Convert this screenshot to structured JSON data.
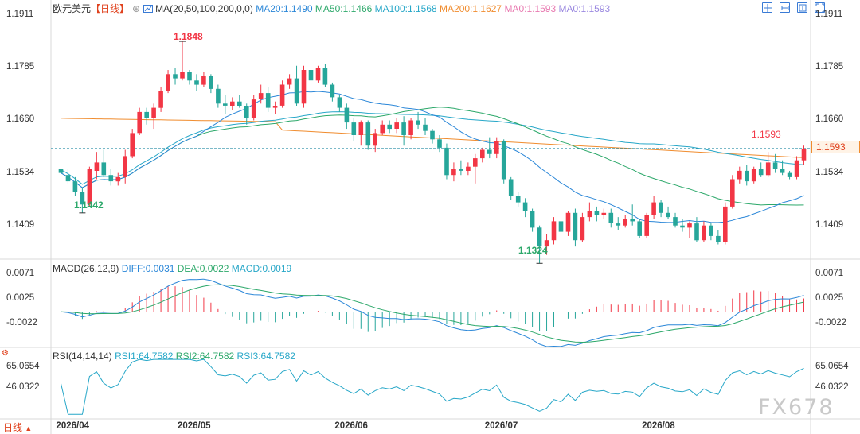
{
  "header": {
    "symbol": "欧元美元",
    "period": "【日线】",
    "ma_text": "MA(20,50,100,200,0,0)",
    "ma_values": [
      {
        "label": "MA20:1.1490",
        "color": "#2b87d8"
      },
      {
        "label": "MA50:1.1466",
        "color": "#2ca86a"
      },
      {
        "label": "MA100:1.1568",
        "color": "#27a7c8"
      },
      {
        "label": "MA200:1.1627",
        "color": "#f08c2e"
      },
      {
        "label": "MA0:1.1593",
        "color": "#e879b0"
      },
      {
        "label": "MA0:1.1593",
        "color": "#9a88e0"
      }
    ],
    "macd_title": "MACD(26,12,9)",
    "macd_values": [
      {
        "label": "DIFF:0.0031",
        "color": "#2b87d8"
      },
      {
        "label": "DEA:0.0022",
        "color": "#2ca86a"
      },
      {
        "label": "MACD:0.0019",
        "color": "#27a7c8"
      }
    ],
    "rsi_title": "RSI(14,14,14)",
    "rsi_values": [
      {
        "label": "RSI1:64.7582",
        "color": "#27a7c8"
      },
      {
        "label": "RSI2:64.7582",
        "color": "#2ca86a"
      },
      {
        "label": "RSI3:64.7582",
        "color": "#27a7c8"
      }
    ],
    "period_button": "日线"
  },
  "toolbar": [
    {
      "name": "crosshair-icon"
    },
    {
      "name": "zoom-out-icon"
    },
    {
      "name": "zoom-in-icon"
    },
    {
      "name": "fullscreen-icon"
    }
  ],
  "price_axis": {
    "ticks": [
      "1.1911",
      "1.1785",
      "1.1660",
      "1.1534",
      "1.1409"
    ]
  },
  "macd_axis": {
    "ticks": [
      "0.0071",
      "0.0025",
      "-0.0022"
    ]
  },
  "rsi_axis": {
    "ticks": [
      "65.0654",
      "46.0322"
    ]
  },
  "x_axis": {
    "labels": [
      "2026/04",
      "2026/05",
      "2026/06",
      "2026/07",
      "2026/08"
    ]
  },
  "annotations": {
    "high": "1.1848",
    "low1": "1.1442",
    "low2": "1.1324",
    "last": "1.1593"
  },
  "current_price": "1.1593",
  "watermark": "FX678",
  "colors": {
    "up": "#f23645",
    "down": "#26a69a",
    "ma20": "#2b87d8",
    "ma50": "#2ca86a",
    "ma100": "#27a7c8",
    "ma200": "#f08c2e",
    "dashline": "#2a8fa8"
  },
  "chart_data": {
    "type": "candlestick",
    "title": "欧元美元【日线】",
    "ylim": [
      1.133,
      1.192
    ],
    "candles": [
      [
        1.1545,
        1.156,
        1.1525,
        1.1535
      ],
      [
        1.153,
        1.1545,
        1.151,
        1.1515
      ],
      [
        1.1515,
        1.1525,
        1.148,
        1.149
      ],
      [
        1.149,
        1.15,
        1.144,
        1.146
      ],
      [
        1.146,
        1.155,
        1.1455,
        1.1545
      ],
      [
        1.154,
        1.1585,
        1.152,
        1.156
      ],
      [
        1.156,
        1.159,
        1.1525,
        1.153
      ],
      [
        1.153,
        1.1545,
        1.1505,
        1.1515
      ],
      [
        1.1515,
        1.1535,
        1.1505,
        1.1525
      ],
      [
        1.1525,
        1.159,
        1.151,
        1.1575
      ],
      [
        1.1575,
        1.164,
        1.157,
        1.163
      ],
      [
        1.163,
        1.169,
        1.1625,
        1.168
      ],
      [
        1.168,
        1.169,
        1.165,
        1.1665
      ],
      [
        1.1665,
        1.17,
        1.164,
        1.169
      ],
      [
        1.169,
        1.174,
        1.168,
        1.173
      ],
      [
        1.173,
        1.178,
        1.1725,
        1.177
      ],
      [
        1.177,
        1.1785,
        1.1745,
        1.176
      ],
      [
        1.176,
        1.1848,
        1.1755,
        1.1775
      ],
      [
        1.1775,
        1.178,
        1.1745,
        1.1755
      ],
      [
        1.1755,
        1.177,
        1.173,
        1.1745
      ],
      [
        1.1745,
        1.1775,
        1.174,
        1.1765
      ],
      [
        1.1765,
        1.177,
        1.1725,
        1.1735
      ],
      [
        1.1735,
        1.1745,
        1.169,
        1.17
      ],
      [
        1.17,
        1.172,
        1.1675,
        1.1695
      ],
      [
        1.1695,
        1.1715,
        1.1685,
        1.1705
      ],
      [
        1.1705,
        1.172,
        1.169,
        1.1695
      ],
      [
        1.1695,
        1.17,
        1.165,
        1.1665
      ],
      [
        1.1665,
        1.172,
        1.166,
        1.171
      ],
      [
        1.171,
        1.1745,
        1.17,
        1.1725
      ],
      [
        1.1725,
        1.174,
        1.168,
        1.169
      ],
      [
        1.169,
        1.1705,
        1.1675,
        1.1695
      ],
      [
        1.1695,
        1.1755,
        1.169,
        1.1745
      ],
      [
        1.1745,
        1.177,
        1.1735,
        1.176
      ],
      [
        1.176,
        1.179,
        1.1695,
        1.17
      ],
      [
        1.17,
        1.179,
        1.169,
        1.178
      ],
      [
        1.178,
        1.1785,
        1.1745,
        1.1755
      ],
      [
        1.1755,
        1.179,
        1.175,
        1.1785
      ],
      [
        1.1785,
        1.1795,
        1.174,
        1.1745
      ],
      [
        1.1745,
        1.175,
        1.1705,
        1.1715
      ],
      [
        1.1715,
        1.172,
        1.168,
        1.169
      ],
      [
        1.169,
        1.17,
        1.164,
        1.1655
      ],
      [
        1.1655,
        1.1665,
        1.161,
        1.1625
      ],
      [
        1.1625,
        1.166,
        1.16,
        1.1655
      ],
      [
        1.1655,
        1.166,
        1.159,
        1.16
      ],
      [
        1.16,
        1.164,
        1.1585,
        1.163
      ],
      [
        1.163,
        1.166,
        1.1625,
        1.165
      ],
      [
        1.165,
        1.166,
        1.163,
        1.164
      ],
      [
        1.164,
        1.1665,
        1.163,
        1.1655
      ],
      [
        1.1655,
        1.167,
        1.16,
        1.1625
      ],
      [
        1.1625,
        1.1665,
        1.1615,
        1.166
      ],
      [
        1.166,
        1.168,
        1.164,
        1.165
      ],
      [
        1.165,
        1.1665,
        1.1625,
        1.1635
      ],
      [
        1.1635,
        1.164,
        1.1605,
        1.1615
      ],
      [
        1.1615,
        1.1625,
        1.1585,
        1.1595
      ],
      [
        1.1595,
        1.1605,
        1.152,
        1.153
      ],
      [
        1.153,
        1.156,
        1.1515,
        1.1545
      ],
      [
        1.1545,
        1.1565,
        1.153,
        1.154
      ],
      [
        1.154,
        1.156,
        1.153,
        1.155
      ],
      [
        1.155,
        1.158,
        1.151,
        1.157
      ],
      [
        1.157,
        1.1595,
        1.156,
        1.159
      ],
      [
        1.159,
        1.162,
        1.157,
        1.158
      ],
      [
        1.158,
        1.162,
        1.157,
        1.161
      ],
      [
        1.161,
        1.1615,
        1.151,
        1.152
      ],
      [
        1.152,
        1.1525,
        1.147,
        1.148
      ],
      [
        1.148,
        1.149,
        1.1455,
        1.1465
      ],
      [
        1.1465,
        1.1475,
        1.143,
        1.1445
      ],
      [
        1.1445,
        1.145,
        1.1395,
        1.1405
      ],
      [
        1.1405,
        1.141,
        1.132,
        1.136
      ],
      [
        1.136,
        1.139,
        1.134,
        1.1375
      ],
      [
        1.1375,
        1.143,
        1.1365,
        1.142
      ],
      [
        1.142,
        1.1425,
        1.138,
        1.1395
      ],
      [
        1.1395,
        1.1445,
        1.1385,
        1.144
      ],
      [
        1.144,
        1.145,
        1.136,
        1.1375
      ],
      [
        1.1375,
        1.144,
        1.137,
        1.143
      ],
      [
        1.143,
        1.1465,
        1.142,
        1.1445
      ],
      [
        1.1445,
        1.1455,
        1.142,
        1.1435
      ],
      [
        1.1435,
        1.145,
        1.1425,
        1.144
      ],
      [
        1.144,
        1.145,
        1.1405,
        1.1415
      ],
      [
        1.1415,
        1.143,
        1.14,
        1.141
      ],
      [
        1.141,
        1.1435,
        1.1405,
        1.1425
      ],
      [
        1.1425,
        1.146,
        1.141,
        1.142
      ],
      [
        1.142,
        1.1425,
        1.138,
        1.1385
      ],
      [
        1.1385,
        1.144,
        1.138,
        1.1435
      ],
      [
        1.1435,
        1.148,
        1.1425,
        1.1465
      ],
      [
        1.1465,
        1.147,
        1.143,
        1.144
      ],
      [
        1.144,
        1.1455,
        1.1425,
        1.143
      ],
      [
        1.143,
        1.144,
        1.1405,
        1.141
      ],
      [
        1.141,
        1.1425,
        1.1395,
        1.1405
      ],
      [
        1.1405,
        1.142,
        1.138,
        1.1415
      ],
      [
        1.1415,
        1.143,
        1.137,
        1.1375
      ],
      [
        1.1375,
        1.142,
        1.137,
        1.141
      ],
      [
        1.141,
        1.1415,
        1.1375,
        1.1385
      ],
      [
        1.1385,
        1.14,
        1.1365,
        1.137
      ],
      [
        1.137,
        1.1465,
        1.1365,
        1.1455
      ],
      [
        1.1455,
        1.153,
        1.145,
        1.152
      ],
      [
        1.152,
        1.155,
        1.151,
        1.154
      ],
      [
        1.154,
        1.1555,
        1.1505,
        1.1515
      ],
      [
        1.1515,
        1.155,
        1.151,
        1.1545
      ],
      [
        1.1545,
        1.156,
        1.1525,
        1.153
      ],
      [
        1.153,
        1.1585,
        1.1525,
        1.156
      ],
      [
        1.156,
        1.158,
        1.1535,
        1.1545
      ],
      [
        1.1545,
        1.1565,
        1.153,
        1.1535
      ],
      [
        1.1535,
        1.154,
        1.152,
        1.1525
      ],
      [
        1.1525,
        1.1575,
        1.152,
        1.1565
      ],
      [
        1.1565,
        1.16,
        1.1555,
        1.1593
      ]
    ],
    "macd_ylim": [
      -0.006,
      0.0082
    ],
    "rsi_ylim": [
      20,
      75
    ]
  }
}
